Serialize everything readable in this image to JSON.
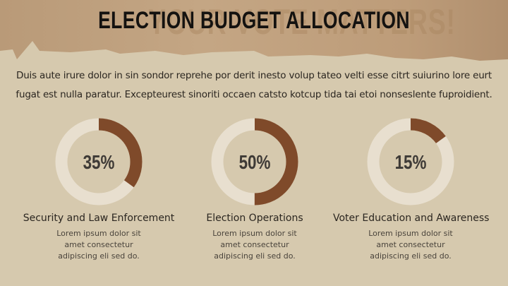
{
  "header": {
    "title": "ELECTION BUDGET ALLOCATION",
    "watermark": "YOUR VOTE MATTERS!"
  },
  "intro": "Duis aute irure dolor in sin sondor reprehe por derit inesto volup tateo velti esse citrt suiurino lore eurt fugat est nulla paratur. Excepteurest sinoriti occaen catsto kotcup tida tai etoi nonseslente fuproidient.",
  "colors": {
    "fill": "#7f4a2a",
    "track": "#e8dfcf",
    "background": "#d6c9ae"
  },
  "chart_data": {
    "type": "pie",
    "subtype": "donut",
    "categories": [
      "Security and  Law  Enforcement",
      "Election Operations",
      "Voter Education and Awareness"
    ],
    "values": [
      35,
      50,
      15
    ],
    "labels": [
      "35%",
      "50%",
      "15%"
    ]
  },
  "items": [
    {
      "label": "Security and  Law  Enforcement",
      "desc1": "Lorem ipsum dolor sit",
      "desc2": "amet consectetur",
      "desc3": "adipiscing eli sed do."
    },
    {
      "label": "Election Operations",
      "desc1": "Lorem ipsum dolor sit",
      "desc2": "amet consectetur",
      "desc3": "adipiscing eli sed do."
    },
    {
      "label": "Voter Education and Awareness",
      "desc1": "Lorem ipsum dolor sit",
      "desc2": "amet consectetur",
      "desc3": "adipiscing eli sed do."
    }
  ]
}
